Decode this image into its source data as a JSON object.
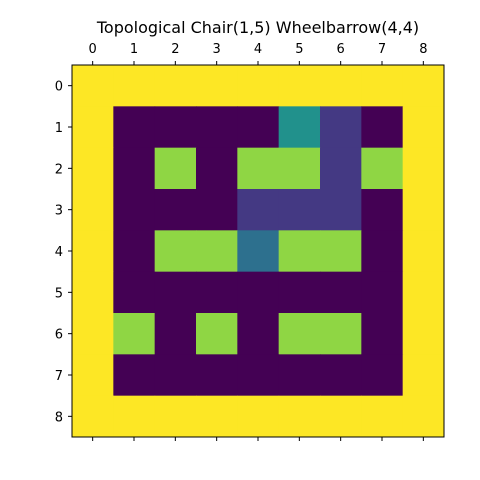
{
  "chart_data": {
    "type": "heatmap",
    "title": "Topological Chair(1,5) Wheelbarrow(4,4)",
    "xlabel": "",
    "ylabel": "",
    "x_ticks": [
      "0",
      "1",
      "2",
      "3",
      "4",
      "5",
      "6",
      "7",
      "8"
    ],
    "y_ticks": [
      "0",
      "1",
      "2",
      "3",
      "4",
      "5",
      "6",
      "7",
      "8"
    ],
    "x_axis_position": "top",
    "grid": false,
    "legend": "none",
    "colormap": "viridis",
    "value_range": [
      0,
      4
    ],
    "values": [
      [
        4,
        4,
        4,
        4,
        4,
        4,
        4,
        4,
        4
      ],
      [
        4,
        0,
        0,
        0,
        0,
        2,
        0.8,
        0,
        4
      ],
      [
        4,
        0,
        3.3,
        0,
        3.3,
        3.3,
        0.8,
        3.3,
        4
      ],
      [
        4,
        0,
        0,
        0,
        0.8,
        0.8,
        0.8,
        0,
        4
      ],
      [
        4,
        0,
        3.3,
        3.3,
        1.5,
        3.3,
        3.3,
        0,
        4
      ],
      [
        4,
        0,
        0,
        0,
        0,
        0,
        0,
        0,
        4
      ],
      [
        4,
        3.3,
        0,
        3.3,
        0,
        3.3,
        3.3,
        0,
        4
      ],
      [
        4,
        0,
        0,
        0,
        0,
        0,
        0,
        0,
        4
      ],
      [
        4,
        4,
        4,
        4,
        4,
        4,
        4,
        4,
        4
      ]
    ]
  }
}
